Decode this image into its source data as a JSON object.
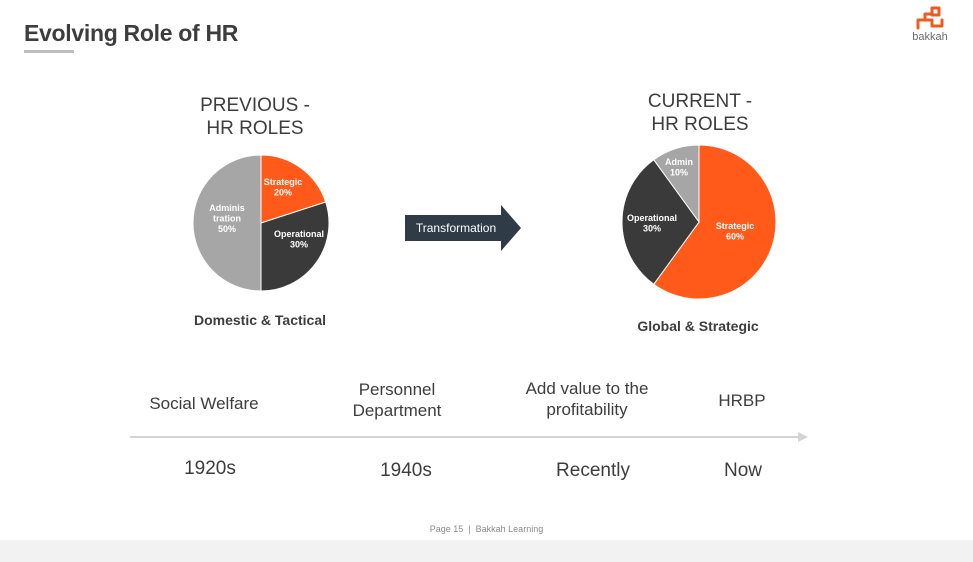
{
  "slide": {
    "title": "Evolving Role of HR",
    "logo_text": "bakkah"
  },
  "previous": {
    "heading_line1": "PREVIOUS -",
    "heading_line2": "HR ROLES",
    "caption": "Domestic & Tactical"
  },
  "current": {
    "heading_line1": "CURRENT -",
    "heading_line2": "HR ROLES",
    "caption": "Global & Strategic"
  },
  "transformation_label": "Transformation",
  "timeline": {
    "stages": [
      {
        "label_line1": "Social Welfare",
        "label_line2": "",
        "era": "1920s"
      },
      {
        "label_line1": "Personnel",
        "label_line2": "Department",
        "era": "1940s"
      },
      {
        "label_line1": "Add value to the",
        "label_line2": "profitability",
        "era": "Recently"
      },
      {
        "label_line1": "HRBP",
        "label_line2": "",
        "era": "Now"
      }
    ]
  },
  "footer": {
    "page": "Page 15",
    "separator": "|",
    "org": "Bakkah Learning"
  },
  "colors": {
    "strategic": "#ff5a1a",
    "operational": "#3a3a3a",
    "admin": "#a6a6a6",
    "arrow": "#2f3b47",
    "logo": "#f05a22"
  },
  "chart_data": [
    {
      "type": "pie",
      "title": "PREVIOUS - HR ROLES",
      "slices": [
        {
          "label_line1": "Strategic",
          "label_line2": "",
          "percent_text": "20%",
          "value": 20,
          "color_key": "strategic"
        },
        {
          "label_line1": "Operational",
          "label_line2": "",
          "percent_text": "30%",
          "value": 30,
          "color_key": "operational"
        },
        {
          "label_line1": "Adminis",
          "label_line2": "tration",
          "percent_text": "50%",
          "value": 50,
          "color_key": "admin"
        }
      ]
    },
    {
      "type": "pie",
      "title": "CURRENT - HR ROLES",
      "slices": [
        {
          "label_line1": "Strategic",
          "label_line2": "",
          "percent_text": "60%",
          "value": 60,
          "color_key": "strategic"
        },
        {
          "label_line1": "Operational",
          "label_line2": "",
          "percent_text": "30%",
          "value": 30,
          "color_key": "operational"
        },
        {
          "label_line1": "Admin",
          "label_line2": "",
          "percent_text": "10%",
          "value": 10,
          "color_key": "admin"
        }
      ]
    }
  ]
}
